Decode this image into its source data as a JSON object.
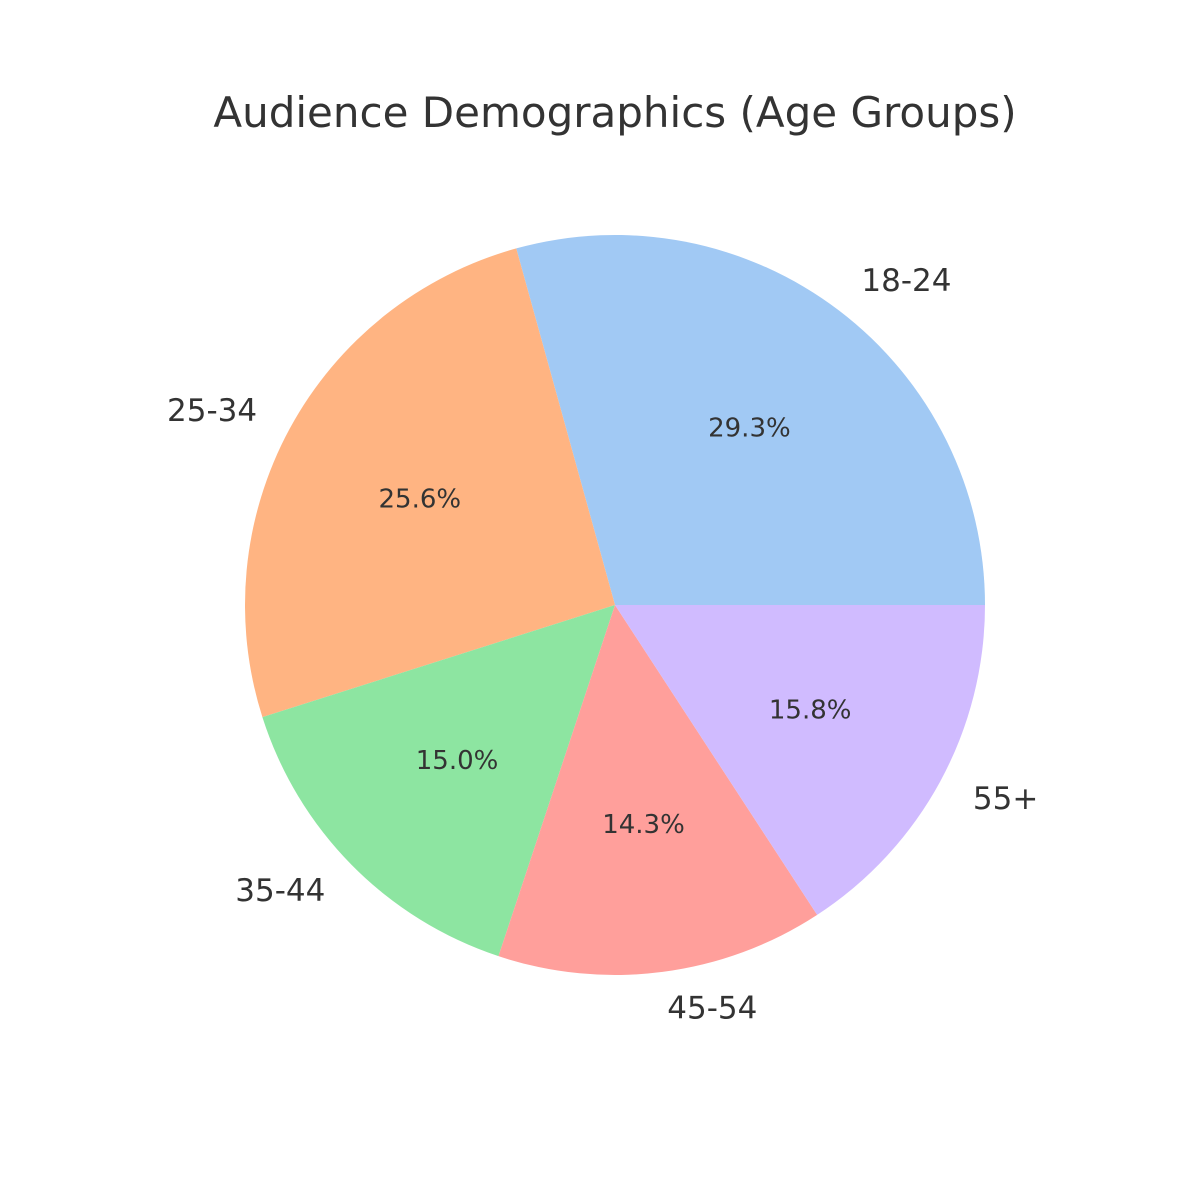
{
  "chart_data": {
    "type": "pie",
    "title": "Audience Demographics (Age Groups)",
    "categories": [
      "18-24",
      "25-34",
      "35-44",
      "45-54",
      "55+"
    ],
    "values": [
      29.3,
      25.6,
      15.0,
      14.3,
      15.8
    ],
    "value_labels": [
      "29.3%",
      "25.6%",
      "15.0%",
      "14.3%",
      "15.8%"
    ],
    "colors": [
      "#a1c9f4",
      "#ffb482",
      "#8de5a1",
      "#ff9f9b",
      "#d0bbff"
    ],
    "legend": "none",
    "direction": "counterclockwise"
  }
}
